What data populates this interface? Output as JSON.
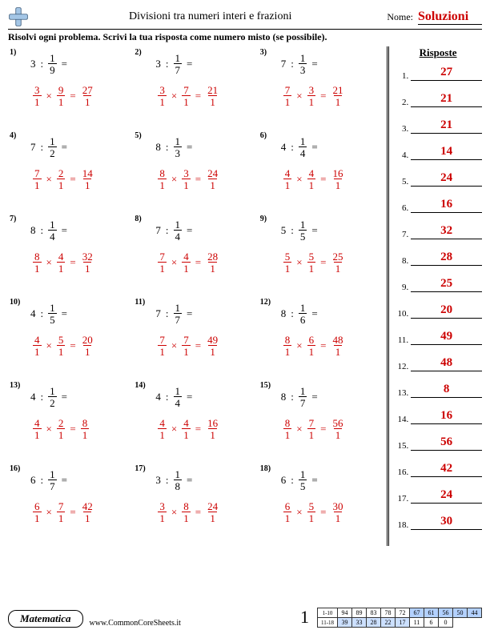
{
  "header": {
    "title": "Divisioni tra numeri interi e frazioni",
    "name_label": "Nome:",
    "name_value": "Soluzioni"
  },
  "instruction": "Risolvi ogni problema. Scrivi la tua risposta come numero misto (se possibile).",
  "answers_title": "Risposte",
  "problems": [
    {
      "n": "1)",
      "w": "3",
      "fn": "1",
      "fd": "9",
      "s1n": "3",
      "s1d": "1",
      "s2n": "9",
      "s2d": "1",
      "rn": "27",
      "rd": "1"
    },
    {
      "n": "2)",
      "w": "3",
      "fn": "1",
      "fd": "7",
      "s1n": "3",
      "s1d": "1",
      "s2n": "7",
      "s2d": "1",
      "rn": "21",
      "rd": "1"
    },
    {
      "n": "3)",
      "w": "7",
      "fn": "1",
      "fd": "3",
      "s1n": "7",
      "s1d": "1",
      "s2n": "3",
      "s2d": "1",
      "rn": "21",
      "rd": "1"
    },
    {
      "n": "4)",
      "w": "7",
      "fn": "1",
      "fd": "2",
      "s1n": "7",
      "s1d": "1",
      "s2n": "2",
      "s2d": "1",
      "rn": "14",
      "rd": "1"
    },
    {
      "n": "5)",
      "w": "8",
      "fn": "1",
      "fd": "3",
      "s1n": "8",
      "s1d": "1",
      "s2n": "3",
      "s2d": "1",
      "rn": "24",
      "rd": "1"
    },
    {
      "n": "6)",
      "w": "4",
      "fn": "1",
      "fd": "4",
      "s1n": "4",
      "s1d": "1",
      "s2n": "4",
      "s2d": "1",
      "rn": "16",
      "rd": "1"
    },
    {
      "n": "7)",
      "w": "8",
      "fn": "1",
      "fd": "4",
      "s1n": "8",
      "s1d": "1",
      "s2n": "4",
      "s2d": "1",
      "rn": "32",
      "rd": "1"
    },
    {
      "n": "8)",
      "w": "7",
      "fn": "1",
      "fd": "4",
      "s1n": "7",
      "s1d": "1",
      "s2n": "4",
      "s2d": "1",
      "rn": "28",
      "rd": "1"
    },
    {
      "n": "9)",
      "w": "5",
      "fn": "1",
      "fd": "5",
      "s1n": "5",
      "s1d": "1",
      "s2n": "5",
      "s2d": "1",
      "rn": "25",
      "rd": "1"
    },
    {
      "n": "10)",
      "w": "4",
      "fn": "1",
      "fd": "5",
      "s1n": "4",
      "s1d": "1",
      "s2n": "5",
      "s2d": "1",
      "rn": "20",
      "rd": "1"
    },
    {
      "n": "11)",
      "w": "7",
      "fn": "1",
      "fd": "7",
      "s1n": "7",
      "s1d": "1",
      "s2n": "7",
      "s2d": "1",
      "rn": "49",
      "rd": "1"
    },
    {
      "n": "12)",
      "w": "8",
      "fn": "1",
      "fd": "6",
      "s1n": "8",
      "s1d": "1",
      "s2n": "6",
      "s2d": "1",
      "rn": "48",
      "rd": "1"
    },
    {
      "n": "13)",
      "w": "4",
      "fn": "1",
      "fd": "2",
      "s1n": "4",
      "s1d": "1",
      "s2n": "2",
      "s2d": "1",
      "rn": "8",
      "rd": "1"
    },
    {
      "n": "14)",
      "w": "4",
      "fn": "1",
      "fd": "4",
      "s1n": "4",
      "s1d": "1",
      "s2n": "4",
      "s2d": "1",
      "rn": "16",
      "rd": "1"
    },
    {
      "n": "15)",
      "w": "8",
      "fn": "1",
      "fd": "7",
      "s1n": "8",
      "s1d": "1",
      "s2n": "7",
      "s2d": "1",
      "rn": "56",
      "rd": "1"
    },
    {
      "n": "16)",
      "w": "6",
      "fn": "1",
      "fd": "7",
      "s1n": "6",
      "s1d": "1",
      "s2n": "7",
      "s2d": "1",
      "rn": "42",
      "rd": "1"
    },
    {
      "n": "17)",
      "w": "3",
      "fn": "1",
      "fd": "8",
      "s1n": "3",
      "s1d": "1",
      "s2n": "8",
      "s2d": "1",
      "rn": "24",
      "rd": "1"
    },
    {
      "n": "18)",
      "w": "6",
      "fn": "1",
      "fd": "5",
      "s1n": "6",
      "s1d": "1",
      "s2n": "5",
      "s2d": "1",
      "rn": "30",
      "rd": "1"
    }
  ],
  "answers": [
    "27",
    "21",
    "21",
    "14",
    "24",
    "16",
    "32",
    "28",
    "25",
    "20",
    "49",
    "48",
    "8",
    "16",
    "56",
    "42",
    "24",
    "30"
  ],
  "footer": {
    "subject": "Matematica",
    "site": "www.CommonCoreSheets.it",
    "page": "1",
    "score_row1_label": "1-10",
    "score_row2_label": "11-18",
    "scores1": [
      "94",
      "89",
      "83",
      "78",
      "72",
      "67",
      "61",
      "56",
      "50",
      "44"
    ],
    "scores2": [
      "39",
      "33",
      "28",
      "22",
      "17",
      "11",
      "6",
      "0"
    ]
  },
  "colors": {
    "red": "#cc0000"
  }
}
